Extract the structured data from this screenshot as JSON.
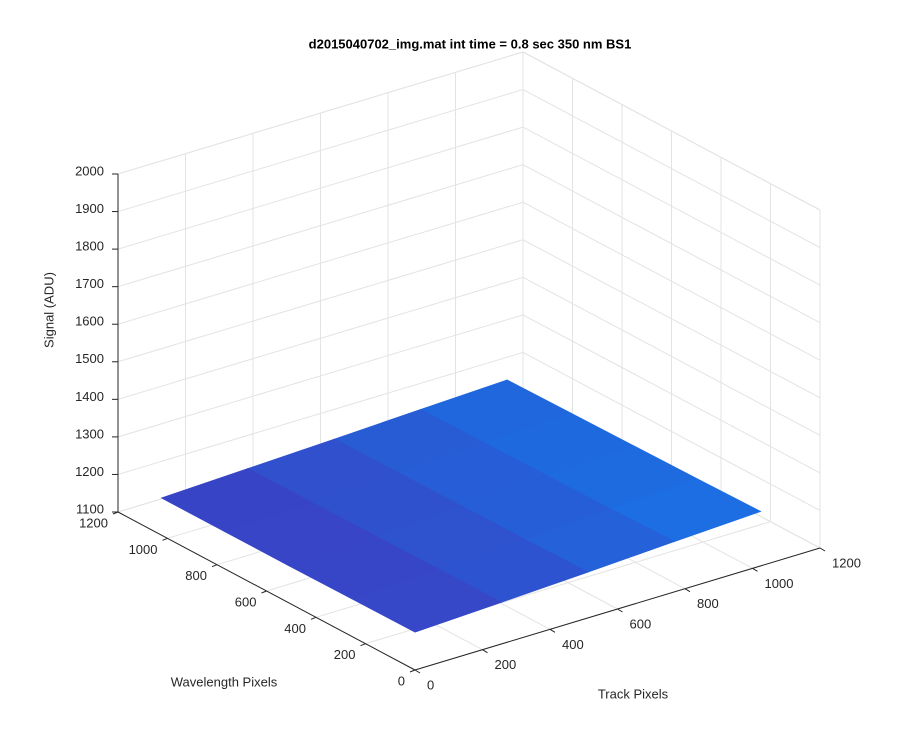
{
  "chart_data": {
    "type": "surface",
    "title": "d2015040702_img.mat int time = 0.8 sec  350 nm BS1",
    "xlabel": "Track Pixels",
    "ylabel": "Wavelength Pixels",
    "zlabel": "Signal (ADU)",
    "x": [
      0,
      256,
      512,
      768,
      1024
    ],
    "y": [
      0,
      256,
      512,
      768,
      1024
    ],
    "z": [
      [
        1201,
        1211,
        1222,
        1234,
        1245
      ],
      [
        1200,
        1210,
        1220,
        1231,
        1242
      ],
      [
        1199,
        1209,
        1219,
        1229,
        1240
      ],
      [
        1199,
        1208,
        1218,
        1228,
        1238
      ],
      [
        1199,
        1208,
        1217,
        1227,
        1236
      ]
    ],
    "colors": [
      "#3b3fc2",
      "#1677e8"
    ],
    "xlim": [
      0,
      1200
    ],
    "ylim": [
      0,
      1200
    ],
    "zlim": [
      1100,
      2000
    ],
    "xticks": [
      0,
      200,
      400,
      600,
      800,
      1000,
      1200
    ],
    "yticks": [
      0,
      200,
      400,
      600,
      800,
      1000,
      1200
    ],
    "zticks": [
      1100,
      1200,
      1300,
      1400,
      1500,
      1600,
      1700,
      1800,
      1900,
      2000
    ],
    "grid": true
  }
}
